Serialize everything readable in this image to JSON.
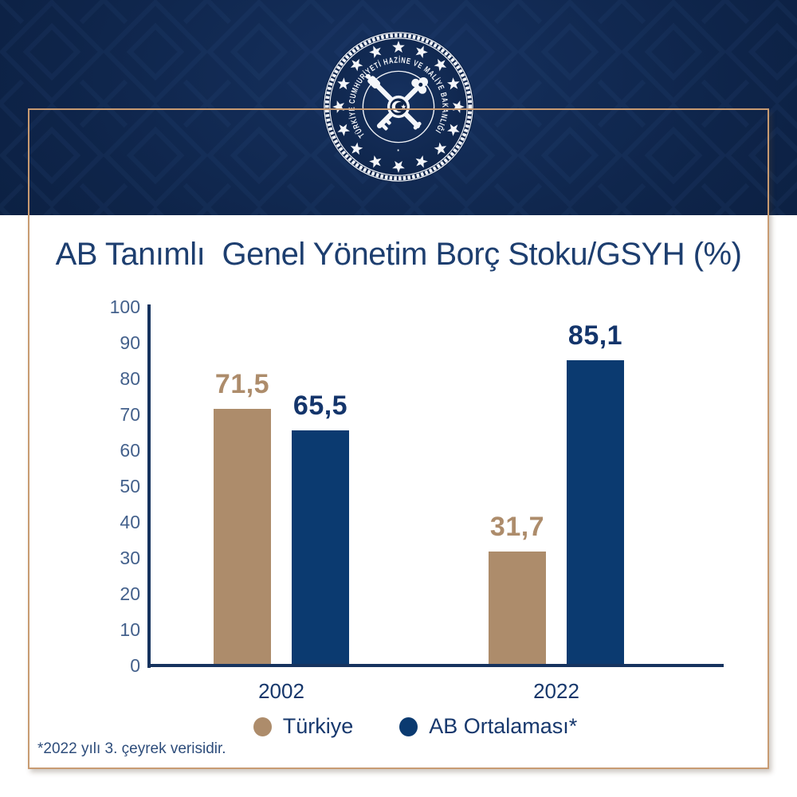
{
  "header": {
    "emblem": {
      "name": "turkiye-hazine-ve-maliye-bakanligi-emblem",
      "ring_text": "TÜRKİYE CUMHURİYETİ HAZİNE VE MALİYE BAKANLIĞI",
      "bottom_separator": "·"
    }
  },
  "title": "AB Tanımlı  Genel Yönetim Borç Stoku/GSYH (%)",
  "footnote": "*2022 yılı 3. çeyrek verisidir.",
  "legend": [
    {
      "label": "Türkiye",
      "color": "#ad8c6b"
    },
    {
      "label": "AB Ortalaması*",
      "color": "#0b3a70"
    }
  ],
  "chart_data": {
    "type": "bar",
    "title": "AB Tanımlı Genel Yönetim Borç Stoku/GSYH (%)",
    "categories": [
      "2002",
      "2022"
    ],
    "series": [
      {
        "name": "Türkiye",
        "values": [
          71.5,
          31.7
        ],
        "labels": [
          "71,5",
          "31,7"
        ],
        "color": "#ad8c6b",
        "label_color": "#ad8c6b"
      },
      {
        "name": "AB Ortalaması*",
        "values": [
          65.5,
          85.1
        ],
        "labels": [
          "65,5",
          "85,1"
        ],
        "color": "#0b3a70",
        "label_color": "#14356b"
      }
    ],
    "xlabel": "",
    "ylabel": "",
    "ylim": [
      0,
      100
    ],
    "yticks": [
      0,
      10,
      20,
      30,
      40,
      50,
      60,
      70,
      80,
      90,
      100
    ],
    "grid": false,
    "legend_position": "bottom",
    "value_label_decimal_separator": ","
  },
  "colors": {
    "header_navy": "#0e2449",
    "frame_tan": "#c89b72",
    "axis": "#16335e",
    "tick_label": "#44618c",
    "category_label": "#16376b",
    "title": "#1d3e6f",
    "footnote": "#2e4d7b"
  }
}
